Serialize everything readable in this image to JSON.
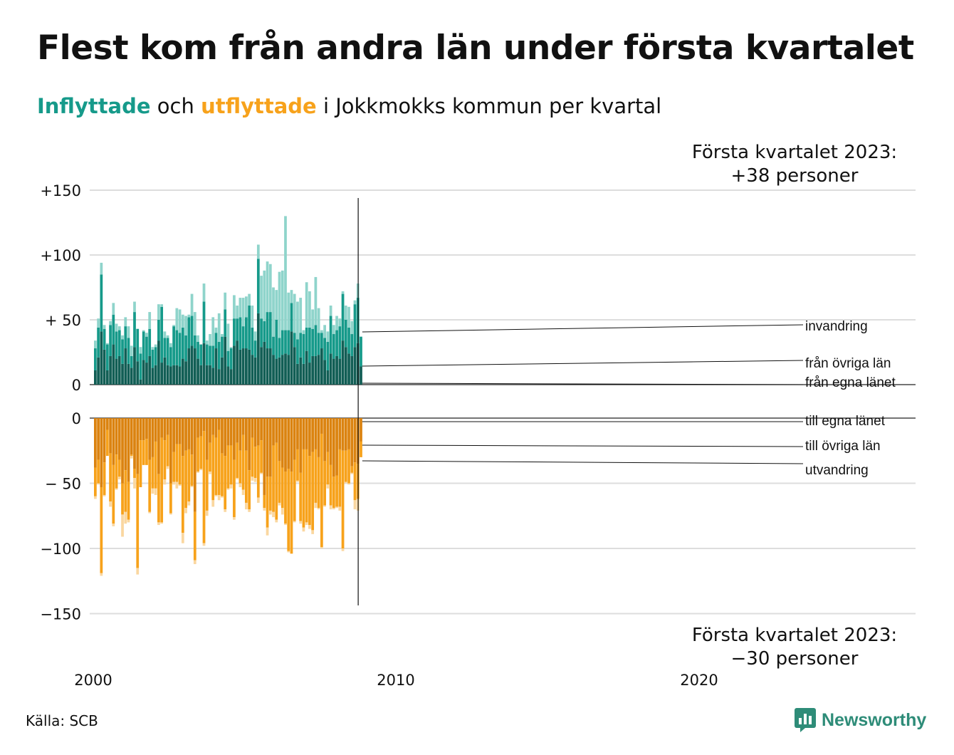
{
  "title": "Flest kom från andra län under första kvartalet",
  "subtitle": {
    "inflyttade": "Inflyttade",
    "och": "och",
    "utflyttade": "utflyttade",
    "rest": "i Jokkmokks kommun per kvartal"
  },
  "annotations": {
    "top_line1": "Första kvartalet 2023:",
    "top_line2": "+38 personer",
    "bottom_line1": "Första kvartalet 2023:",
    "bottom_line2": "−30 personer"
  },
  "source": "Källa: SCB",
  "brand": "Newsworthy",
  "colors": {
    "in_egna": "#125e55",
    "in_ovriga": "#169a8a",
    "in_invandring": "#8fd4cb",
    "ut_egna": "#db8310",
    "ut_ovriga": "#f7a21b",
    "ut_utvandring": "#fad7a0",
    "grid": "#dddddd",
    "brand": "#2e8c78"
  },
  "chart_data": {
    "type": "bar",
    "x_start": "2000 Q1",
    "x_ticks": [
      "2000",
      "2010",
      "2020"
    ],
    "legend_in": [
      "invandring",
      "från övriga län",
      "från egna länet"
    ],
    "legend_out": [
      "till egna länet",
      "till övriga län",
      "utvandring"
    ],
    "panels": [
      {
        "name": "in",
        "ylim": [
          0,
          150
        ],
        "ticks": [
          {
            "value": 150,
            "label": "+150"
          },
          {
            "value": 100,
            "label": "+100"
          },
          {
            "value": 50,
            "label": "+ 50"
          },
          {
            "value": 0,
            "label": "0"
          }
        ]
      },
      {
        "name": "out",
        "ylim": [
          -150,
          0
        ],
        "ticks": [
          {
            "value": 0,
            "label": "0"
          },
          {
            "value": -50,
            "label": "− 50"
          },
          {
            "value": -100,
            "label": "−100"
          },
          {
            "value": -150,
            "label": "−150"
          }
        ]
      }
    ],
    "series_in": [
      {
        "name": "från egna länet",
        "values": [
          11,
          21,
          41,
          27,
          11,
          22,
          31,
          20,
          22,
          16,
          28,
          16,
          13,
          29,
          18,
          4,
          19,
          17,
          22,
          13,
          15,
          34,
          17,
          21,
          15,
          14,
          15,
          15,
          14,
          20,
          18,
          28,
          30,
          28,
          20,
          15,
          32,
          15,
          15,
          13,
          28,
          12,
          21,
          37,
          14,
          12,
          30,
          34,
          27,
          28,
          28,
          27,
          23,
          21,
          55,
          29,
          33,
          28,
          28,
          23,
          20,
          21,
          23,
          24,
          23,
          41,
          29,
          16,
          21,
          16,
          26,
          17,
          22,
          22,
          23,
          28,
          19,
          11,
          24,
          20,
          22,
          20,
          34,
          29,
          24,
          22,
          29,
          32,
          14
        ]
      },
      {
        "name": "från övriga län",
        "values": [
          17,
          23,
          44,
          16,
          20,
          24,
          23,
          21,
          20,
          19,
          17,
          20,
          9,
          27,
          25,
          20,
          22,
          20,
          21,
          14,
          14,
          16,
          43,
          15,
          21,
          15,
          30,
          27,
          26,
          24,
          20,
          24,
          23,
          10,
          13,
          16,
          32,
          16,
          15,
          17,
          12,
          21,
          16,
          21,
          12,
          16,
          21,
          17,
          25,
          17,
          24,
          34,
          21,
          13,
          42,
          22,
          16,
          28,
          28,
          14,
          30,
          15,
          19,
          18,
          19,
          22,
          11,
          19,
          19,
          23,
          18,
          27,
          21,
          24,
          17,
          12,
          17,
          22,
          29,
          19,
          20,
          25,
          36,
          21,
          20,
          17,
          33,
          35,
          23
        ]
      },
      {
        "name": "invandring",
        "values": [
          6,
          7,
          9,
          3,
          1,
          3,
          9,
          6,
          3,
          3,
          7,
          9,
          8,
          8,
          0,
          5,
          1,
          3,
          13,
          2,
          2,
          12,
          2,
          5,
          2,
          3,
          1,
          17,
          18,
          10,
          15,
          2,
          17,
          18,
          5,
          0,
          14,
          3,
          9,
          22,
          4,
          22,
          2,
          13,
          21,
          1,
          18,
          10,
          15,
          22,
          16,
          9,
          17,
          7,
          11,
          33,
          39,
          39,
          37,
          38,
          23,
          51,
          46,
          88,
          29,
          10,
          30,
          29,
          27,
          3,
          35,
          28,
          15,
          37,
          19,
          2,
          10,
          8,
          8,
          7,
          11,
          6,
          2,
          11,
          16,
          10,
          3,
          11,
          0
        ]
      }
    ],
    "series_out": [
      {
        "name": "till egna länet",
        "values": [
          38,
          32,
          53,
          34,
          9,
          27,
          36,
          28,
          32,
          50,
          40,
          49,
          28,
          39,
          43,
          17,
          17,
          16,
          32,
          30,
          18,
          43,
          15,
          17,
          13,
          50,
          26,
          20,
          20,
          29,
          25,
          24,
          28,
          72,
          15,
          14,
          10,
          32,
          19,
          13,
          15,
          9,
          27,
          29,
          21,
          21,
          32,
          19,
          25,
          13,
          25,
          40,
          15,
          22,
          21,
          17,
          59,
          45,
          45,
          21,
          19,
          33,
          38,
          41,
          39,
          41,
          32,
          24,
          42,
          24,
          24,
          29,
          26,
          24,
          30,
          12,
          33,
          26,
          36,
          45,
          44,
          24,
          25,
          25,
          24,
          37,
          34,
          35,
          18
        ]
      },
      {
        "name": "till övriga län",
        "values": [
          22,
          18,
          66,
          25,
          20,
          37,
          45,
          26,
          13,
          24,
          32,
          29,
          1,
          7,
          72,
          36,
          19,
          20,
          40,
          24,
          36,
          37,
          65,
          30,
          24,
          23,
          23,
          29,
          31,
          59,
          44,
          40,
          24,
          37,
          26,
          25,
          86,
          39,
          22,
          50,
          44,
          50,
          33,
          41,
          33,
          30,
          44,
          27,
          25,
          42,
          40,
          30,
          30,
          24,
          40,
          25,
          10,
          39,
          26,
          51,
          59,
          32,
          31,
          40,
          63,
          63,
          47,
          24,
          37,
          60,
          56,
          53,
          60,
          41,
          39,
          87,
          34,
          25,
          31,
          24,
          24,
          44,
          75,
          24,
          26,
          5,
          29,
          27,
          12
        ]
      },
      {
        "name": "utvandring",
        "values": [
          2,
          1,
          2,
          1,
          0,
          4,
          2,
          1,
          2,
          17,
          9,
          2,
          2,
          8,
          5,
          0,
          0,
          0,
          1,
          4,
          5,
          2,
          1,
          4,
          2,
          1,
          2,
          5,
          1,
          8,
          4,
          3,
          1,
          3,
          1,
          1,
          2,
          4,
          2,
          5,
          1,
          4,
          1,
          2,
          1,
          3,
          2,
          1,
          3,
          4,
          5,
          2,
          3,
          3,
          4,
          1,
          2,
          6,
          3,
          4,
          2,
          2,
          5,
          1,
          1,
          0,
          1,
          1,
          2,
          3,
          2,
          3,
          3,
          4,
          1,
          1,
          1,
          3,
          3,
          1,
          1,
          3,
          2,
          1,
          1,
          1,
          7,
          9,
          0
        ]
      }
    ]
  }
}
